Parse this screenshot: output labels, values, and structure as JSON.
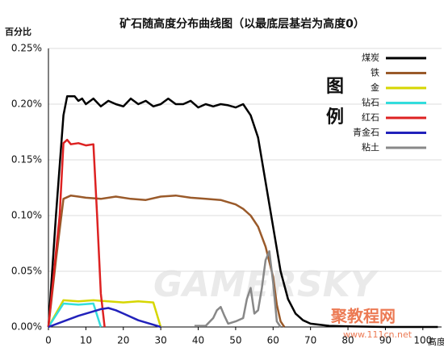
{
  "chart_data": {
    "type": "line",
    "title": "矿石随高度分布曲线图（以最底层基岩为高度0）",
    "y_label": "百分比",
    "x_label": "高度",
    "legend_title": "图例",
    "watermarks": [
      "GAMERSKY",
      "聚教程网",
      "www.111cn.net"
    ],
    "xlim": [
      0,
      105
    ],
    "xticks": [
      0,
      10,
      20,
      30,
      40,
      50,
      60,
      70,
      80,
      90,
      100
    ],
    "ylim": [
      0,
      0.25
    ],
    "yticks": [
      {
        "value": 0,
        "label": "0.00%"
      },
      {
        "value": 0.05,
        "label": "0.05%"
      },
      {
        "value": 0.1,
        "label": "0.10%"
      },
      {
        "value": 0.15,
        "label": "0.15%"
      },
      {
        "value": 0.2,
        "label": "0.20%"
      },
      {
        "value": 0.25,
        "label": "0.25%"
      }
    ],
    "grid": true,
    "legend": "top-right",
    "series": [
      {
        "name": "煤炭",
        "color": "#000000",
        "x": [
          0,
          2,
          4,
          5,
          6,
          7,
          8,
          9,
          10,
          12,
          14,
          16,
          18,
          20,
          22,
          24,
          26,
          28,
          30,
          32,
          34,
          36,
          38,
          40,
          42,
          44,
          46,
          48,
          50,
          52,
          54,
          56,
          58,
          60,
          62,
          64,
          66,
          68,
          70,
          75,
          80,
          90,
          100,
          104
        ],
        "values": [
          0,
          0.1,
          0.19,
          0.207,
          0.207,
          0.207,
          0.203,
          0.205,
          0.2,
          0.205,
          0.198,
          0.203,
          0.2,
          0.198,
          0.205,
          0.2,
          0.203,
          0.198,
          0.2,
          0.205,
          0.2,
          0.2,
          0.203,
          0.197,
          0.2,
          0.198,
          0.2,
          0.199,
          0.197,
          0.2,
          0.19,
          0.17,
          0.13,
          0.09,
          0.05,
          0.025,
          0.012,
          0.006,
          0.003,
          0.001,
          0.0005,
          0,
          0,
          0
        ]
      },
      {
        "name": "铁",
        "color": "#9a5a2a",
        "x": [
          0,
          2,
          4,
          6,
          8,
          10,
          14,
          18,
          22,
          26,
          30,
          34,
          38,
          42,
          46,
          48,
          50,
          52,
          54,
          56,
          58,
          60,
          61,
          62,
          63
        ],
        "values": [
          0,
          0.06,
          0.115,
          0.118,
          0.117,
          0.116,
          0.115,
          0.117,
          0.115,
          0.114,
          0.117,
          0.118,
          0.116,
          0.115,
          0.114,
          0.112,
          0.11,
          0.106,
          0.1,
          0.09,
          0.072,
          0.045,
          0.02,
          0.005,
          0
        ]
      },
      {
        "name": "金",
        "color": "#d6d600",
        "x": [
          0,
          4,
          8,
          12,
          16,
          20,
          24,
          28,
          30
        ],
        "values": [
          0,
          0.024,
          0.023,
          0.024,
          0.023,
          0.022,
          0.023,
          0.022,
          0
        ]
      },
      {
        "name": "钻石",
        "color": "#33dddd",
        "x": [
          0,
          4,
          8,
          12,
          14
        ],
        "values": [
          0,
          0.021,
          0.02,
          0.021,
          0
        ]
      },
      {
        "name": "红石",
        "color": "#dd2222",
        "x": [
          0,
          3,
          4,
          5,
          6,
          8,
          10,
          12,
          13,
          14,
          15
        ],
        "values": [
          0,
          0.1,
          0.165,
          0.168,
          0.164,
          0.165,
          0.163,
          0.164,
          0.1,
          0.03,
          0
        ]
      },
      {
        "name": "青金石",
        "color": "#2222bb",
        "x": [
          0,
          4,
          8,
          12,
          14,
          16,
          18,
          20,
          24,
          28,
          30
        ],
        "values": [
          0,
          0.005,
          0.01,
          0.014,
          0.016,
          0.017,
          0.015,
          0.012,
          0.006,
          0.002,
          0
        ]
      },
      {
        "name": "粘土",
        "color": "#888888",
        "x": [
          39,
          42,
          44,
          45,
          46,
          47,
          48,
          50,
          52,
          53,
          54,
          55,
          56,
          57,
          58,
          59,
          60,
          61,
          62
        ],
        "values": [
          0.001,
          0.001,
          0.008,
          0.015,
          0.018,
          0.01,
          0.003,
          0.005,
          0.008,
          0.025,
          0.035,
          0.012,
          0.015,
          0.035,
          0.06,
          0.068,
          0.04,
          0.005,
          0
        ]
      }
    ]
  }
}
